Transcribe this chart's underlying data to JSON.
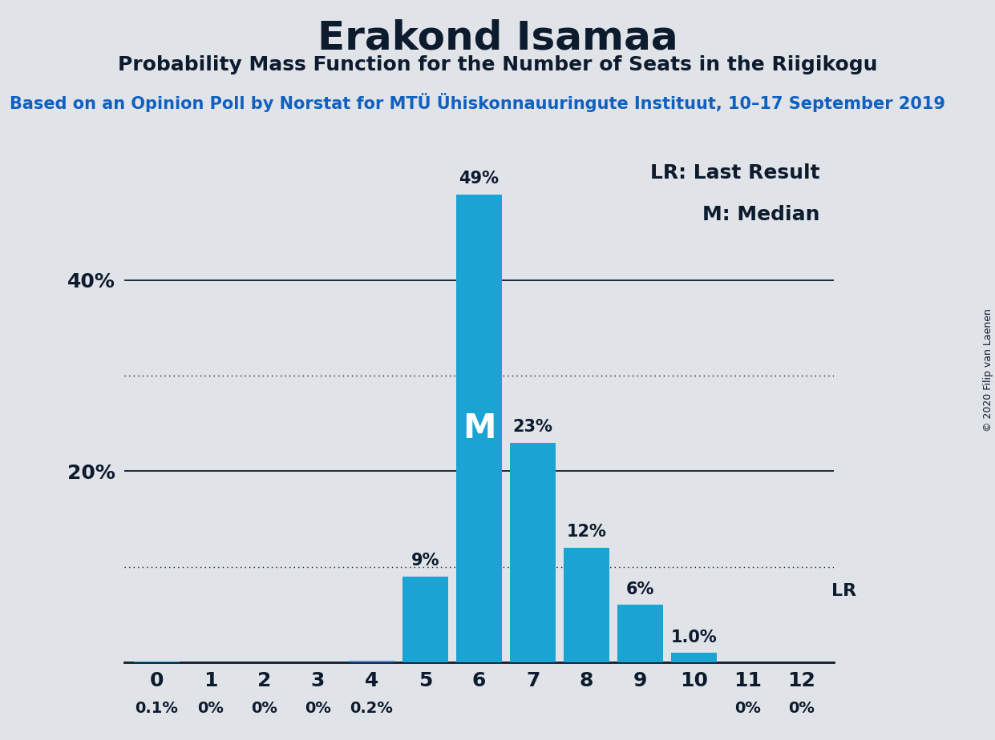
{
  "title": "Erakond Isamaa",
  "subtitle": "Probability Mass Function for the Number of Seats in the Riigikogu",
  "source": "Based on an Opinion Poll by Norstat for MTÜ Ühiskonnauuringute Instituut, 10–17 September 2019",
  "copyright": "© 2020 Filip van Laenen",
  "x_labels": [
    0,
    1,
    2,
    3,
    4,
    5,
    6,
    7,
    8,
    9,
    10,
    11,
    12
  ],
  "values": [
    0.1,
    0.0,
    0.0,
    0.0,
    0.2,
    9.0,
    49.0,
    23.0,
    12.0,
    6.0,
    1.0,
    0.0,
    0.0
  ],
  "bar_color": "#1ba3d4",
  "background_color": "#e0e3e8",
  "text_color": "#0d1b2e",
  "median_seat": 6,
  "last_result_seat": 12,
  "ylim": [
    0,
    55
  ],
  "solid_yticks": [
    20,
    40
  ],
  "dotted_yticks": [
    10,
    30
  ],
  "legend_lr": "LR: Last Result",
  "legend_m": "M: Median",
  "value_labels": [
    "0.1%",
    "0%",
    "0%",
    "0%",
    "0.2%",
    "9%",
    "49%",
    "23%",
    "12%",
    "6%",
    "1.0%",
    "0%",
    "0%"
  ],
  "lr_label": "LR",
  "m_label": "M",
  "source_color": "#1060c0",
  "title_fontsize": 36,
  "subtitle_fontsize": 18,
  "source_fontsize": 15,
  "tick_fontsize": 18,
  "value_label_fontsize": 15,
  "legend_fontsize": 18,
  "m_fontsize": 30,
  "lr_below_fontsize": 16
}
